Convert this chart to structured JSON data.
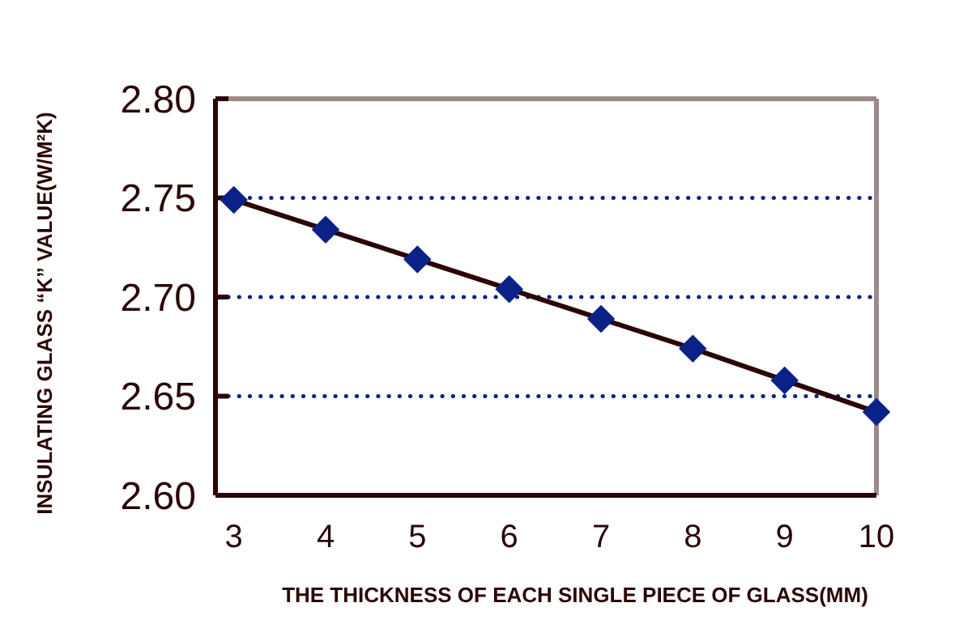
{
  "chart_data": {
    "type": "line",
    "xlabel": "THE THICKNESS OF EACH SINGLE PIECE OF GLASS(MM)",
    "ylabel": "INSULATING GLASS “K” VALUE(W/M²K)",
    "x": [
      3,
      4,
      5,
      6,
      7,
      8,
      9,
      10
    ],
    "series": [
      {
        "color": "#0a2288",
        "values": [
          2.749,
          2.734,
          2.719,
          2.704,
          2.689,
          2.674,
          2.658,
          2.642
        ]
      }
    ],
    "xlim": [
      2.8,
      10
    ],
    "xticks": [
      3,
      4,
      5,
      6,
      7,
      8,
      9,
      10
    ],
    "ylim": [
      2.6,
      2.8
    ],
    "yticks": [
      {
        "value": 2.6,
        "label": "2.60"
      },
      2.65,
      {
        "value": 2.7,
        "label": "2.70"
      },
      2.75,
      {
        "value": 2.8,
        "label": "2.80"
      }
    ],
    "grid": "y",
    "marker": "diamond",
    "line_style": "solid"
  }
}
